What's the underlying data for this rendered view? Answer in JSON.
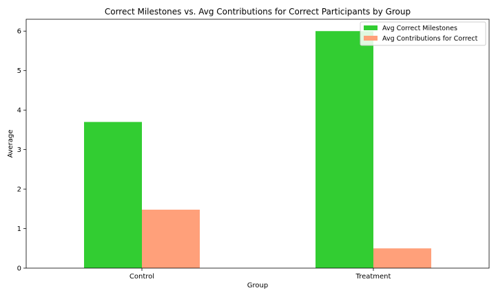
{
  "chart_data": {
    "type": "bar",
    "title": "Correct Milestones vs. Avg Contributions for Correct Participants by Group",
    "xlabel": "Group",
    "ylabel": "Average",
    "categories": [
      "Control",
      "Treatment"
    ],
    "ylim": [
      0,
      6.3
    ],
    "yticks": [
      0,
      1,
      2,
      3,
      4,
      5,
      6
    ],
    "grid": false,
    "legend_position": "top-right",
    "series": [
      {
        "name": "Avg Correct Milestones",
        "color": "#32cd32",
        "values": [
          3.7,
          6.0
        ]
      },
      {
        "name": "Avg Contributions for Correct",
        "color": "#ffa07a",
        "values": [
          1.48,
          0.5
        ]
      }
    ]
  }
}
